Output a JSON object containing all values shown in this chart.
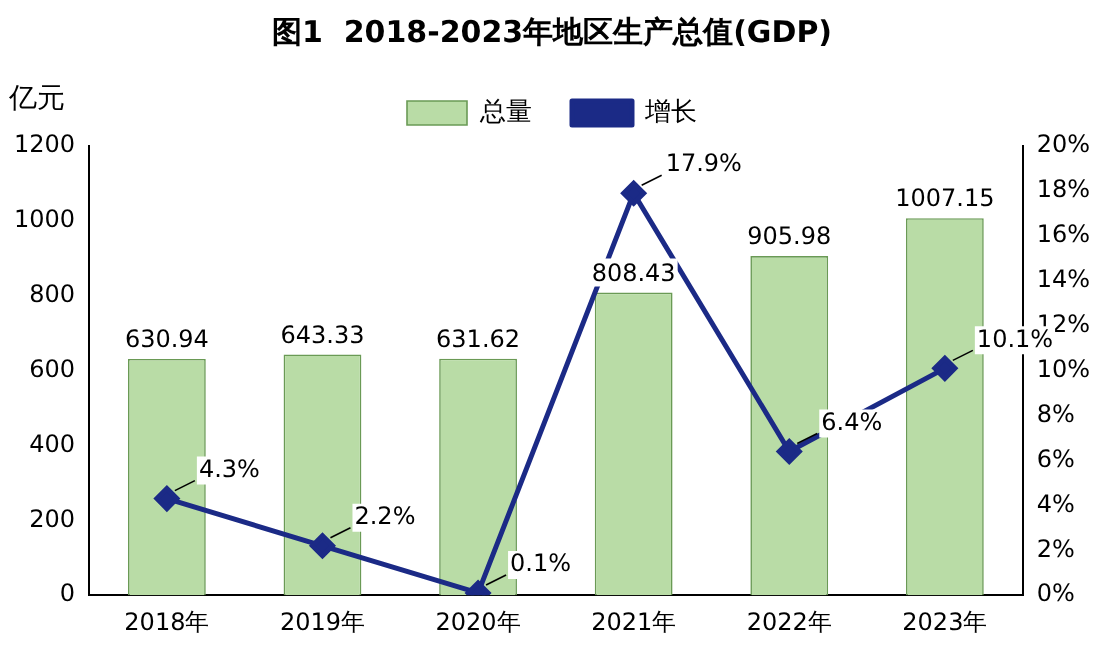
{
  "chart_data": {
    "type": "bar",
    "title": "图1  2018-2023年地区生产总值(GDP)",
    "ylabel": "亿元",
    "categories": [
      "2018年",
      "2019年",
      "2020年",
      "2021年",
      "2022年",
      "2023年"
    ],
    "series": [
      {
        "name": "总量",
        "color": "#b9dca6",
        "values": [
          630.94,
          643.33,
          631.62,
          808.43,
          905.98,
          1007.15
        ],
        "data_labels": true
      },
      {
        "name": "增长",
        "type": "line",
        "axis": "y2",
        "color": "#1b2a86",
        "marker": "diamond",
        "values": [
          4.3,
          2.2,
          0.1,
          17.9,
          6.4,
          10.1
        ],
        "value_labels": [
          "4.3%",
          "2.2%",
          "0.1%",
          "17.9%",
          "6.4%",
          "10.1%"
        ]
      }
    ],
    "ylim": [
      0,
      1200
    ],
    "yticks": [
      0,
      200,
      400,
      600,
      800,
      1000,
      1200
    ],
    "y2lim": [
      0,
      20
    ],
    "y2ticks": [
      {
        "value": 0,
        "label": "0%"
      },
      {
        "value": 2,
        "label": "2%"
      },
      {
        "value": 4,
        "label": "4%"
      },
      {
        "value": 6,
        "label": "6%"
      },
      {
        "value": 8,
        "label": "8%"
      },
      {
        "value": 10,
        "label": "10%"
      },
      {
        "value": 12,
        "label": "12%"
      },
      {
        "value": 14,
        "label": "14%"
      },
      {
        "value": 16,
        "label": "16%"
      },
      {
        "value": 18,
        "label": "18%"
      },
      {
        "value": 20,
        "label": "20%"
      }
    ],
    "legend": "top",
    "grid": false
  }
}
